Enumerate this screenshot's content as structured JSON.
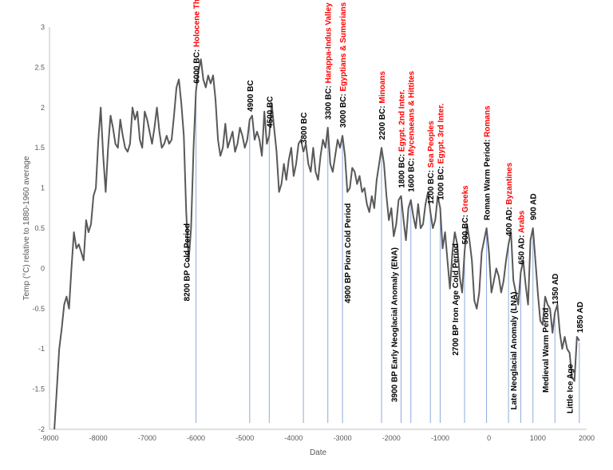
{
  "chart_data": {
    "type": "line",
    "xlabel": "Date",
    "ylabel": "Temp (°C) relative to 1880-1960 average",
    "xlim": [
      -9000,
      2000
    ],
    "ylim": [
      -2,
      3
    ],
    "x_ticks": [
      "-9000",
      "-8000",
      "-7000",
      "-6000",
      "-5000",
      "-4000",
      "-3000",
      "-2000",
      "-1000",
      "0",
      "1000",
      "2000"
    ],
    "y_ticks": [
      "-2",
      "-1.5",
      "-1",
      "-0.5",
      "0",
      "0.5",
      "1",
      "1.5",
      "2",
      "2.5",
      "3"
    ],
    "grid": false,
    "colors": {
      "line": "#595959",
      "marker": "#8eaadb",
      "highlight": "#ff0000",
      "text": "#000000"
    },
    "series": [
      {
        "points": [
          [
            -8900,
            -2.0
          ],
          [
            -8850,
            -1.5
          ],
          [
            -8800,
            -1.0
          ],
          [
            -8750,
            -0.75
          ],
          [
            -8700,
            -0.45
          ],
          [
            -8650,
            -0.35
          ],
          [
            -8600,
            -0.5
          ],
          [
            -8550,
            0.0
          ],
          [
            -8500,
            0.45
          ],
          [
            -8450,
            0.25
          ],
          [
            -8400,
            0.3
          ],
          [
            -8350,
            0.2
          ],
          [
            -8300,
            0.1
          ],
          [
            -8250,
            0.6
          ],
          [
            -8200,
            0.45
          ],
          [
            -8150,
            0.55
          ],
          [
            -8100,
            0.9
          ],
          [
            -8050,
            1.0
          ],
          [
            -8000,
            1.6
          ],
          [
            -7950,
            2.0
          ],
          [
            -7900,
            1.4
          ],
          [
            -7850,
            0.95
          ],
          [
            -7800,
            1.5
          ],
          [
            -7750,
            1.9
          ],
          [
            -7700,
            1.75
          ],
          [
            -7650,
            1.55
          ],
          [
            -7600,
            1.5
          ],
          [
            -7550,
            1.85
          ],
          [
            -7500,
            1.65
          ],
          [
            -7450,
            1.5
          ],
          [
            -7400,
            1.45
          ],
          [
            -7350,
            1.55
          ],
          [
            -7300,
            2.0
          ],
          [
            -7250,
            1.85
          ],
          [
            -7200,
            1.95
          ],
          [
            -7150,
            1.6
          ],
          [
            -7100,
            1.5
          ],
          [
            -7050,
            1.95
          ],
          [
            -7000,
            1.85
          ],
          [
            -6950,
            1.7
          ],
          [
            -6900,
            1.55
          ],
          [
            -6850,
            1.75
          ],
          [
            -6800,
            2.0
          ],
          [
            -6750,
            1.7
          ],
          [
            -6700,
            1.5
          ],
          [
            -6650,
            1.55
          ],
          [
            -6600,
            1.65
          ],
          [
            -6550,
            1.55
          ],
          [
            -6500,
            1.6
          ],
          [
            -6450,
            1.9
          ],
          [
            -6400,
            2.25
          ],
          [
            -6350,
            2.35
          ],
          [
            -6300,
            2.05
          ],
          [
            -6250,
            1.65
          ],
          [
            -6200,
            0.7
          ],
          [
            -6150,
            0.1
          ],
          [
            -6100,
            0.5
          ],
          [
            -6050,
            1.5
          ],
          [
            -6000,
            2.2
          ],
          [
            -5950,
            2.45
          ],
          [
            -5900,
            2.6
          ],
          [
            -5850,
            2.35
          ],
          [
            -5800,
            2.25
          ],
          [
            -5750,
            2.4
          ],
          [
            -5700,
            2.3
          ],
          [
            -5650,
            2.4
          ],
          [
            -5600,
            2.1
          ],
          [
            -5550,
            1.6
          ],
          [
            -5500,
            1.4
          ],
          [
            -5450,
            1.5
          ],
          [
            -5400,
            1.8
          ],
          [
            -5350,
            1.5
          ],
          [
            -5300,
            1.6
          ],
          [
            -5250,
            1.7
          ],
          [
            -5200,
            1.45
          ],
          [
            -5150,
            1.55
          ],
          [
            -5100,
            1.75
          ],
          [
            -5050,
            1.65
          ],
          [
            -5000,
            1.5
          ],
          [
            -4950,
            1.6
          ],
          [
            -4900,
            1.85
          ],
          [
            -4850,
            1.9
          ],
          [
            -4800,
            1.6
          ],
          [
            -4750,
            1.7
          ],
          [
            -4700,
            1.6
          ],
          [
            -4650,
            1.4
          ],
          [
            -4600,
            1.95
          ],
          [
            -4550,
            1.55
          ],
          [
            -4500,
            1.65
          ],
          [
            -4450,
            2.05
          ],
          [
            -4400,
            1.75
          ],
          [
            -4350,
            1.45
          ],
          [
            -4300,
            0.95
          ],
          [
            -4250,
            1.05
          ],
          [
            -4200,
            1.3
          ],
          [
            -4150,
            1.1
          ],
          [
            -4100,
            1.35
          ],
          [
            -4050,
            1.5
          ],
          [
            -4000,
            1.15
          ],
          [
            -3950,
            1.3
          ],
          [
            -3900,
            1.55
          ],
          [
            -3850,
            1.6
          ],
          [
            -3800,
            1.45
          ],
          [
            -3750,
            1.55
          ],
          [
            -3700,
            1.3
          ],
          [
            -3650,
            1.2
          ],
          [
            -3600,
            1.5
          ],
          [
            -3550,
            1.2
          ],
          [
            -3500,
            1.1
          ],
          [
            -3450,
            1.4
          ],
          [
            -3400,
            1.6
          ],
          [
            -3350,
            1.5
          ],
          [
            -3300,
            1.75
          ],
          [
            -3250,
            1.3
          ],
          [
            -3200,
            1.2
          ],
          [
            -3150,
            1.4
          ],
          [
            -3100,
            1.6
          ],
          [
            -3050,
            1.5
          ],
          [
            -3000,
            1.65
          ],
          [
            -2950,
            1.4
          ],
          [
            -2900,
            0.95
          ],
          [
            -2850,
            1.0
          ],
          [
            -2800,
            1.25
          ],
          [
            -2750,
            1.2
          ],
          [
            -2700,
            1.05
          ],
          [
            -2650,
            1.15
          ],
          [
            -2600,
            0.95
          ],
          [
            -2550,
            1.0
          ],
          [
            -2500,
            0.8
          ],
          [
            -2450,
            0.7
          ],
          [
            -2400,
            0.9
          ],
          [
            -2350,
            0.75
          ],
          [
            -2300,
            1.1
          ],
          [
            -2250,
            1.3
          ],
          [
            -2200,
            1.5
          ],
          [
            -2150,
            1.3
          ],
          [
            -2100,
            0.9
          ],
          [
            -2050,
            0.6
          ],
          [
            -2000,
            0.75
          ],
          [
            -1950,
            0.4
          ],
          [
            -1900,
            0.55
          ],
          [
            -1850,
            0.85
          ],
          [
            -1800,
            0.9
          ],
          [
            -1750,
            0.6
          ],
          [
            -1700,
            0.35
          ],
          [
            -1650,
            0.75
          ],
          [
            -1600,
            0.85
          ],
          [
            -1550,
            0.65
          ],
          [
            -1500,
            0.5
          ],
          [
            -1450,
            0.8
          ],
          [
            -1400,
            0.5
          ],
          [
            -1350,
            0.55
          ],
          [
            -1300,
            0.8
          ],
          [
            -1250,
            0.95
          ],
          [
            -1200,
            0.7
          ],
          [
            -1150,
            0.5
          ],
          [
            -1100,
            0.6
          ],
          [
            -1050,
            0.9
          ],
          [
            -1000,
            0.75
          ],
          [
            -950,
            0.25
          ],
          [
            -900,
            0.45
          ],
          [
            -850,
            0.1
          ],
          [
            -800,
            -0.25
          ],
          [
            -750,
            0.2
          ],
          [
            -700,
            0.45
          ],
          [
            -650,
            0.3
          ],
          [
            -600,
            -0.1
          ],
          [
            -550,
            -0.3
          ],
          [
            -500,
            0.2
          ],
          [
            -450,
            0.55
          ],
          [
            -400,
            0.35
          ],
          [
            -350,
            0.1
          ],
          [
            -300,
            -0.4
          ],
          [
            -250,
            -0.5
          ],
          [
            -200,
            -0.3
          ],
          [
            -150,
            0.2
          ],
          [
            -100,
            0.35
          ],
          [
            -50,
            0.5
          ],
          [
            0,
            0.2
          ],
          [
            50,
            -0.3
          ],
          [
            100,
            -0.15
          ],
          [
            150,
            0.0
          ],
          [
            200,
            -0.1
          ],
          [
            250,
            -0.3
          ],
          [
            300,
            -0.15
          ],
          [
            350,
            0.1
          ],
          [
            400,
            0.3
          ],
          [
            450,
            0.45
          ],
          [
            500,
            -0.15
          ],
          [
            550,
            -0.3
          ],
          [
            600,
            -0.45
          ],
          [
            650,
            -0.05
          ],
          [
            700,
            0.1
          ],
          [
            750,
            -0.2
          ],
          [
            800,
            -0.45
          ],
          [
            850,
            0.35
          ],
          [
            900,
            0.5
          ],
          [
            950,
            0.1
          ],
          [
            1000,
            -0.3
          ],
          [
            1050,
            -0.65
          ],
          [
            1100,
            -0.7
          ],
          [
            1150,
            -0.35
          ],
          [
            1200,
            -0.45
          ],
          [
            1250,
            -0.5
          ],
          [
            1300,
            -0.8
          ],
          [
            1350,
            -0.55
          ],
          [
            1400,
            -0.45
          ],
          [
            1450,
            -0.8
          ],
          [
            1500,
            -1.0
          ],
          [
            1550,
            -0.85
          ],
          [
            1600,
            -1.0
          ],
          [
            1650,
            -1.05
          ],
          [
            1700,
            -1.35
          ],
          [
            1750,
            -1.4
          ],
          [
            1800,
            -0.85
          ],
          [
            1850,
            -0.9
          ]
        ]
      }
    ],
    "annotations": [
      {
        "x": -6200,
        "label": "8200 BP Cold Period"
      },
      {
        "x": -6000,
        "label": "6000 BC:",
        "label_highlight": "Holocene Thermal Max"
      },
      {
        "x": -4900,
        "label": "4900 BC"
      },
      {
        "x": -4500,
        "label": "4500 BC"
      },
      {
        "x": -3800,
        "label": "3800 BC"
      },
      {
        "x": -3300,
        "label": "3300 BC:",
        "label_highlight": "Harappa-Indus Valley"
      },
      {
        "x": -3000,
        "label": "3000 BC:",
        "label_highlight": "Egyptians & Sumerians"
      },
      {
        "x": -2900,
        "label": "4900 BP Piora Cold Period"
      },
      {
        "x": -2200,
        "label": "2200 BC:",
        "label_highlight": "Minoans"
      },
      {
        "x": -1950,
        "label": "3900 BP Early Neoglacial Anomaly (ENA)"
      },
      {
        "x": -1800,
        "label": "1800 BC:",
        "label_highlight": "Egypt. 2nd Inter."
      },
      {
        "x": -1600,
        "label": "1600 BC:",
        "label_highlight": "Mycenaeans & Hittites"
      },
      {
        "x": -1200,
        "label": "1200 BC:",
        "label_highlight": "Sea Peoples"
      },
      {
        "x": -1000,
        "label": "1000 BC:",
        "label_highlight": "Egypt. 3rd Inter."
      },
      {
        "x": -700,
        "label": "2700 BP Iron Age Cold Period"
      },
      {
        "x": -500,
        "label": "500 BC:",
        "label_highlight": "Greeks"
      },
      {
        "x": -50,
        "label": "Roman Warm Period:",
        "label_highlight": "Romans"
      },
      {
        "x": 400,
        "label": "400 AD:",
        "label_highlight": "Byzantines"
      },
      {
        "x": 500,
        "label": "Late Neoglacial Anomaly (LNA)"
      },
      {
        "x": 650,
        "label": "650 AD:",
        "label_highlight": "Arabs"
      },
      {
        "x": 900,
        "label": "900 AD"
      },
      {
        "x": 1150,
        "label": "Medieval Warm Period"
      },
      {
        "x": 1350,
        "label": "1350 AD"
      },
      {
        "x": 1650,
        "label": "Little Ice Age"
      },
      {
        "x": 1850,
        "label": "1850 AD"
      }
    ]
  }
}
